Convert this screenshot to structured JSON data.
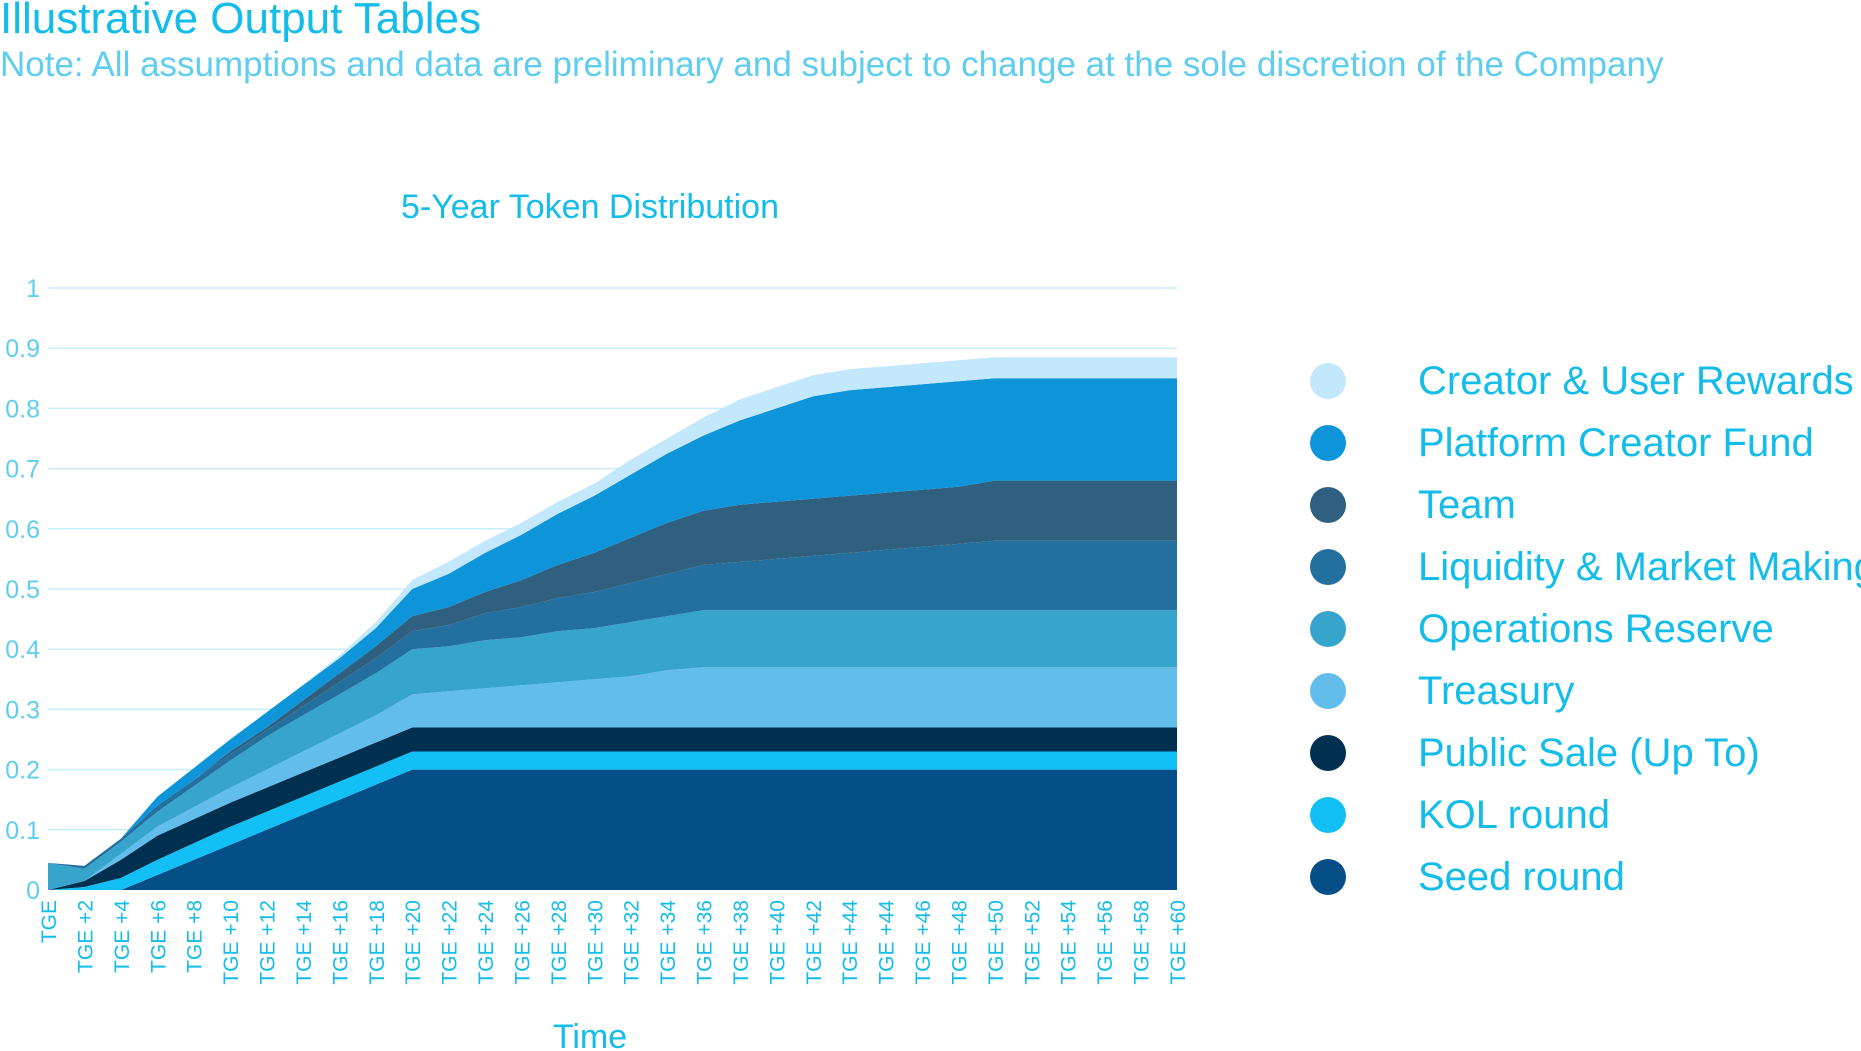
{
  "header": {
    "title": "Illustrative Output Tables",
    "note": "Note: All assumptions and data are preliminary and subject to change at the sole discretion of the Company"
  },
  "chart_data": {
    "type": "area",
    "stacked": true,
    "title": "5-Year Token Distribution",
    "xlabel": "Time",
    "ylabel": "",
    "ylim": [
      0,
      1
    ],
    "yticks": [
      "0",
      "0.1",
      "0.2",
      "0.3",
      "0.4",
      "0.5",
      "0.6",
      "0.7",
      "0.8",
      "0.9",
      "1"
    ],
    "grid": true,
    "legend_position": "right",
    "x": [
      "TGE",
      "TGE +2",
      "TGE +4",
      "TGE +6",
      "TGE +8",
      "TGE +10",
      "TGE +12",
      "TGE +14",
      "TGE +16",
      "TGE +18",
      "TGE +20",
      "TGE +22",
      "TGE +24",
      "TGE +26",
      "TGE +28",
      "TGE +30",
      "TGE +32",
      "TGE +34",
      "TGE +36",
      "TGE +38",
      "TGE +40",
      "TGE +42",
      "TGE +44",
      "TGE +44",
      "TGE +46",
      "TGE +48",
      "TGE +50",
      "TGE +52",
      "TGE +54",
      "TGE +56",
      "TGE +58",
      "TGE +60"
    ],
    "series": [
      {
        "name": "Seed round",
        "color": "#054f89",
        "values": [
          0,
          0,
          0,
          0.025,
          0.05,
          0.075,
          0.1,
          0.125,
          0.15,
          0.175,
          0.2,
          0.2,
          0.2,
          0.2,
          0.2,
          0.2,
          0.2,
          0.2,
          0.2,
          0.2,
          0.2,
          0.2,
          0.2,
          0.2,
          0.2,
          0.2,
          0.2,
          0.2,
          0.2,
          0.2,
          0.2,
          0.2
        ]
      },
      {
        "name": "KOL round",
        "color": "#12c0f5",
        "values": [
          0,
          0.005,
          0.02,
          0.025,
          0.0275,
          0.03,
          0.03,
          0.03,
          0.03,
          0.03,
          0.03,
          0.03,
          0.03,
          0.03,
          0.03,
          0.03,
          0.03,
          0.03,
          0.03,
          0.03,
          0.03,
          0.03,
          0.03,
          0.03,
          0.03,
          0.03,
          0.03,
          0.03,
          0.03,
          0.03,
          0.03,
          0.03
        ]
      },
      {
        "name": "Public Sale (Up To)",
        "color": "#003050",
        "values": [
          0,
          0.01,
          0.03,
          0.04,
          0.04,
          0.04,
          0.04,
          0.04,
          0.04,
          0.04,
          0.04,
          0.04,
          0.04,
          0.04,
          0.04,
          0.04,
          0.04,
          0.04,
          0.04,
          0.04,
          0.04,
          0.04,
          0.04,
          0.04,
          0.04,
          0.04,
          0.04,
          0.04,
          0.04,
          0.04,
          0.04,
          0.04
        ]
      },
      {
        "name": "Treasury",
        "color": "#62bdea",
        "values": [
          0,
          0,
          0.01,
          0.015,
          0.02,
          0.025,
          0.03,
          0.035,
          0.04,
          0.045,
          0.055,
          0.06,
          0.065,
          0.07,
          0.075,
          0.08,
          0.085,
          0.095,
          0.1,
          0.1,
          0.1,
          0.1,
          0.1,
          0.1,
          0.1,
          0.1,
          0.1,
          0.1,
          0.1,
          0.1,
          0.1,
          0.1
        ]
      },
      {
        "name": "Operations Reserve",
        "color": "#37a4cb",
        "values": [
          0.045,
          0.02,
          0.02,
          0.025,
          0.035,
          0.045,
          0.055,
          0.06,
          0.065,
          0.07,
          0.075,
          0.075,
          0.08,
          0.08,
          0.085,
          0.085,
          0.09,
          0.09,
          0.095,
          0.095,
          0.095,
          0.095,
          0.095,
          0.095,
          0.095,
          0.095,
          0.095,
          0.095,
          0.095,
          0.095,
          0.095,
          0.095
        ]
      },
      {
        "name": "Liquidity & Market Making",
        "color": "#236f9e",
        "values": [
          0,
          0.005,
          0.005,
          0.01,
          0.01,
          0.01,
          0.01,
          0.015,
          0.02,
          0.025,
          0.03,
          0.035,
          0.045,
          0.05,
          0.055,
          0.06,
          0.065,
          0.07,
          0.075,
          0.08,
          0.085,
          0.09,
          0.095,
          0.1,
          0.105,
          0.11,
          0.115,
          0.115,
          0.115,
          0.115,
          0.115,
          0.115
        ]
      },
      {
        "name": "Team",
        "color": "#2f607f",
        "values": [
          0,
          0,
          0,
          0,
          0,
          0.005,
          0.005,
          0.01,
          0.015,
          0.02,
          0.025,
          0.03,
          0.035,
          0.045,
          0.055,
          0.065,
          0.075,
          0.085,
          0.09,
          0.095,
          0.095,
          0.095,
          0.095,
          0.095,
          0.095,
          0.095,
          0.1,
          0.1,
          0.1,
          0.1,
          0.1,
          0.1
        ]
      },
      {
        "name": "Platform Creator Fund",
        "color": "#0e95d9",
        "values": [
          0,
          0,
          0,
          0.015,
          0.02,
          0.02,
          0.025,
          0.025,
          0.025,
          0.03,
          0.045,
          0.055,
          0.065,
          0.075,
          0.085,
          0.095,
          0.105,
          0.115,
          0.125,
          0.14,
          0.155,
          0.17,
          0.175,
          0.175,
          0.175,
          0.175,
          0.17,
          0.17,
          0.17,
          0.17,
          0.17,
          0.17
        ]
      },
      {
        "name": "Creator & User Rewards",
        "color": "#c3e7fb",
        "values": [
          0,
          0,
          0,
          0,
          0,
          0,
          0,
          0,
          0.005,
          0.01,
          0.015,
          0.02,
          0.02,
          0.02,
          0.02,
          0.02,
          0.025,
          0.025,
          0.03,
          0.035,
          0.035,
          0.035,
          0.035,
          0.035,
          0.035,
          0.035,
          0.035,
          0.035,
          0.035,
          0.035,
          0.035,
          0.035
        ]
      }
    ]
  }
}
